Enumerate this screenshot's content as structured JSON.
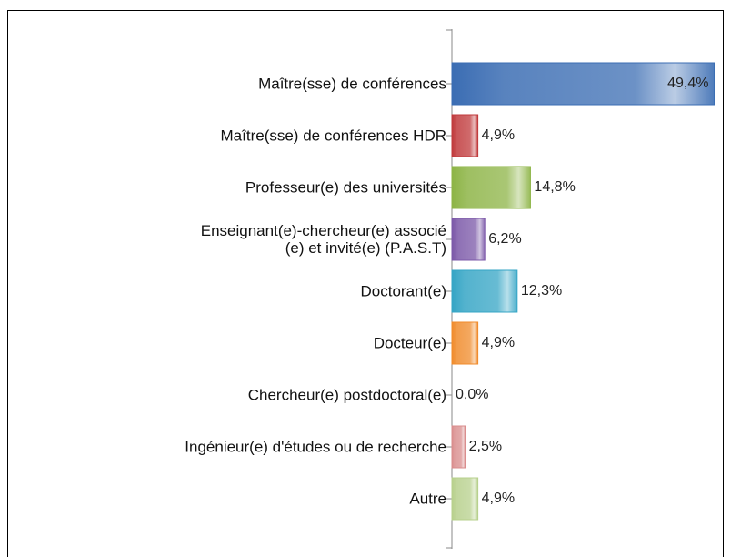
{
  "chart_data": {
    "type": "bar",
    "orientation": "horizontal",
    "categories": [
      "Maître(sse) de conférences",
      "Maître(sse) de conférences HDR",
      "Professeur(e) des universités",
      "Enseignant(e)-chercheur(e) associé\n(e) et invité(e) (P.A.S.T)",
      "Doctorant(e)",
      "Docteur(e)",
      "Chercheur(e) postdoctoral(e)",
      "Ingénieur(e) d'études ou de recherche",
      "Autre"
    ],
    "values": [
      49.4,
      4.9,
      14.8,
      6.2,
      12.3,
      4.9,
      0.0,
      2.5,
      4.9
    ],
    "value_labels": [
      "49,4%",
      "4,9%",
      "14,8%",
      "6,2%",
      "12,3%",
      "4,9%",
      "0,0%",
      "2,5%",
      "4,9%"
    ],
    "colors": [
      "#3b6db3",
      "#c0393b",
      "#8db446",
      "#7b58a8",
      "#35a5c5",
      "#f08b2b",
      "#999999",
      "#d98c8c",
      "#b7d08c"
    ],
    "xlim": [
      0,
      50
    ]
  }
}
